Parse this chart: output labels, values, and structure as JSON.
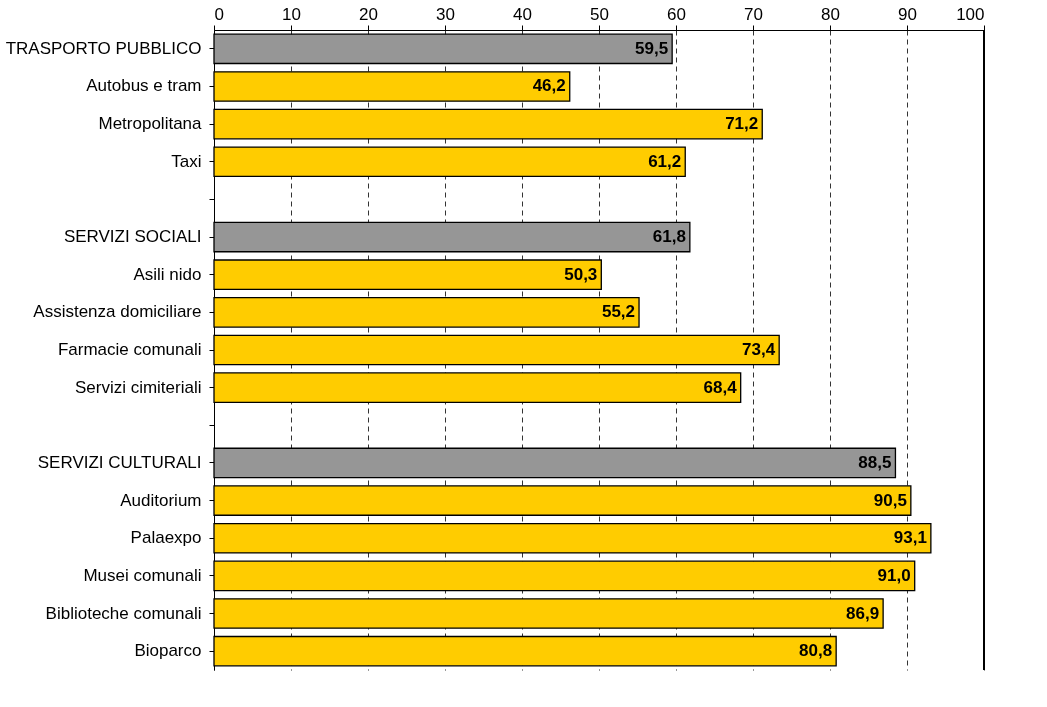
{
  "chart_data": {
    "type": "bar",
    "orientation": "horizontal",
    "categories": [
      "TRASPORTO PUBBLICO",
      "Autobus e tram",
      "Metropolitana",
      "Taxi",
      null,
      "SERVIZI SOCIALI",
      "Asili nido",
      "Assistenza domiciliare",
      "Farmacie comunali",
      "Servizi cimiteriali",
      null,
      "SERVIZI CULTURALI",
      "Auditorium",
      "Palaexpo",
      "Musei comunali",
      "Biblioteche comunali",
      "Bioparco"
    ],
    "values": [
      59.5,
      46.2,
      71.2,
      61.2,
      null,
      61.8,
      50.3,
      55.2,
      73.4,
      68.4,
      null,
      88.5,
      90.5,
      93.1,
      91.0,
      86.9,
      80.8
    ],
    "colors": [
      "#969696",
      "#ffcc00",
      "#ffcc00",
      "#ffcc00",
      "#ffcc00",
      "#969696",
      "#ffcc00",
      "#ffcc00",
      "#ffcc00",
      "#ffcc00",
      "#ffcc00",
      "#969696",
      "#ffcc00",
      "#ffcc00",
      "#ffcc00",
      "#ffcc00",
      "#ffcc00"
    ],
    "value_labels": [
      "59,5",
      "46,2",
      "71,2",
      "61,2",
      null,
      "61,8",
      "50,3",
      "55,2",
      "73,4",
      "68,4",
      null,
      "88,5",
      "90,5",
      "93,1",
      "91,0",
      "86,9",
      "80,8"
    ],
    "xlim": [
      0,
      100
    ],
    "xticks": [
      0,
      10,
      20,
      30,
      40,
      50,
      60,
      70,
      80,
      90,
      100
    ],
    "grid": "x"
  }
}
